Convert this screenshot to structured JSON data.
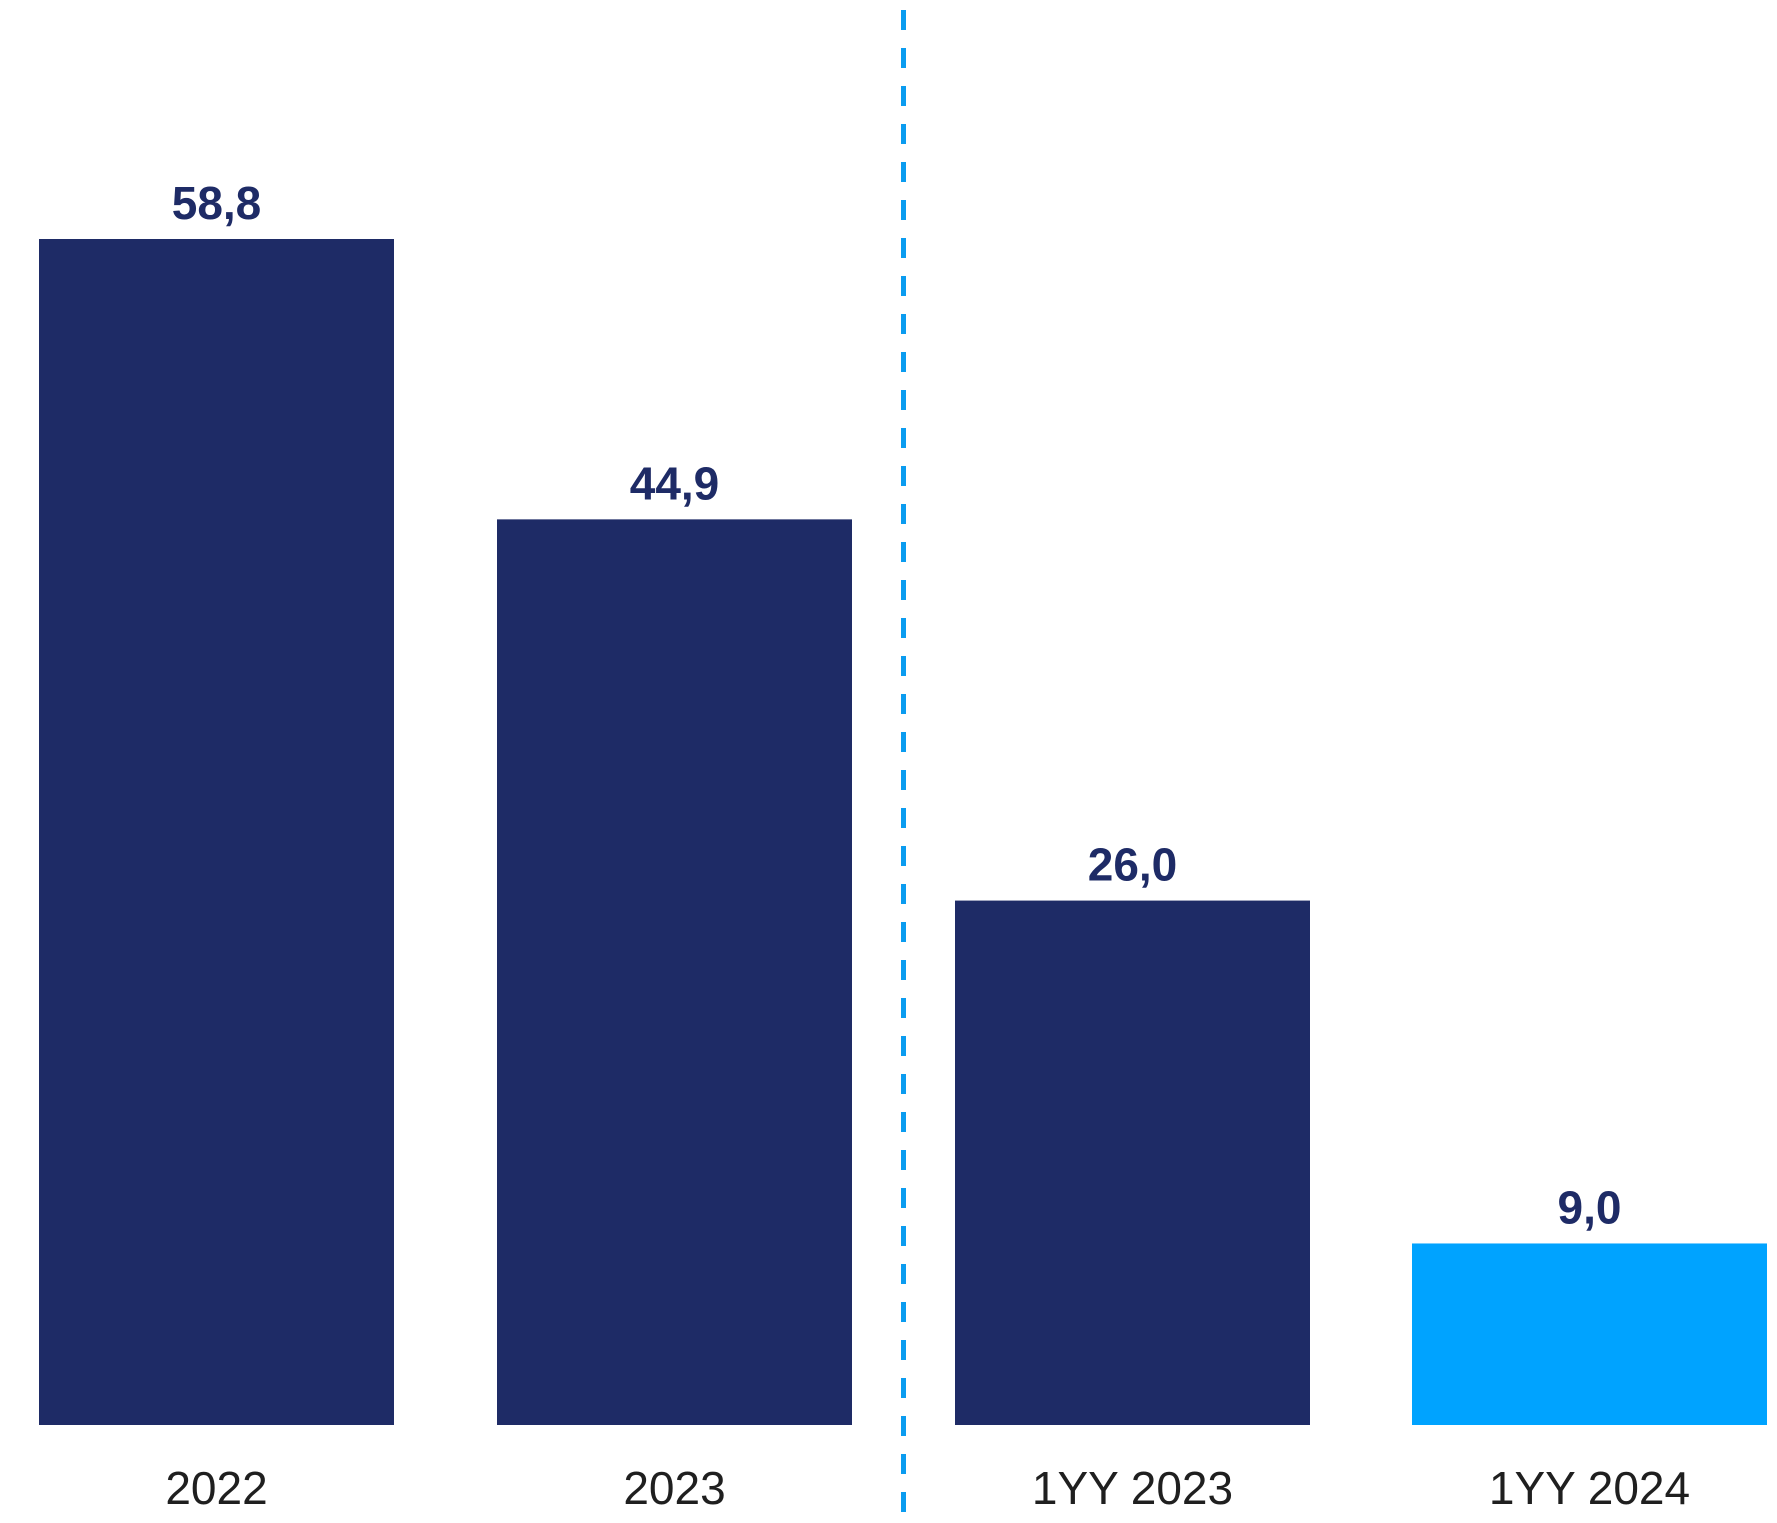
{
  "chart_data": {
    "type": "bar",
    "title": "",
    "xlabel": "",
    "ylabel": "",
    "categories": [
      "2022",
      "2023",
      "1YY 2023",
      "1YY 2024"
    ],
    "values": [
      58.8,
      44.9,
      26.0,
      9.0
    ],
    "value_labels": [
      "58,8",
      "44,9",
      "26,0",
      "9,0"
    ],
    "bar_colors": [
      "#1e2b66",
      "#1e2b66",
      "#1e2b66",
      "#00a3ff"
    ],
    "ylim": [
      0,
      58.8
    ],
    "grid": false,
    "legend": "none",
    "divider": {
      "between_categories": [
        "2023",
        "1YY 2023"
      ],
      "style": "dashed",
      "color": "#0a9cf0"
    }
  },
  "colors": {
    "primary_bar": "#1e2b66",
    "highlight_bar": "#00a3ff",
    "value_text": "#1e2b66",
    "tick_text": "#1f1f1f",
    "divider": "#0a9cf0"
  }
}
